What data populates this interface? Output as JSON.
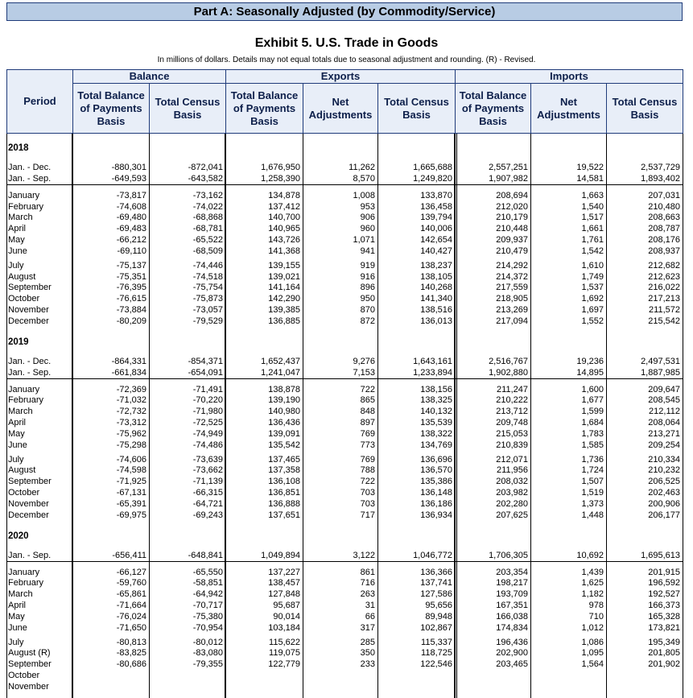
{
  "banner": "Part A: Seasonally Adjusted (by Commodity/Service)",
  "title": "Exhibit 5. U.S. Trade in Goods",
  "note": "In millions of dollars. Details may not equal totals due to seasonal adjustment and rounding. (R) - Revised.",
  "groups": [
    "Balance",
    "Exports",
    "Imports"
  ],
  "columns": [
    "Period",
    "Total Balance of Payments Basis",
    "Total Census Basis",
    "Total Balance of Payments Basis",
    "Net Adjustments",
    "Total Census Basis",
    "Total Balance of Payments Basis",
    "Net Adjustments",
    "Total Census Basis"
  ],
  "sections": [
    {
      "year": "2018",
      "blocks": [
        [
          [
            "Jan. - Dec.",
            "-880,301",
            "-872,041",
            "1,676,950",
            "11,262",
            "1,665,688",
            "2,557,251",
            "19,522",
            "2,537,729"
          ],
          [
            "Jan. - Sep.",
            "-649,593",
            "-643,582",
            "1,258,390",
            "8,570",
            "1,249,820",
            "1,907,982",
            "14,581",
            "1,893,402"
          ]
        ],
        [
          [
            "January",
            "-73,817",
            "-73,162",
            "134,878",
            "1,008",
            "133,870",
            "208,694",
            "1,663",
            "207,031"
          ],
          [
            "February",
            "-74,608",
            "-74,022",
            "137,412",
            "953",
            "136,458",
            "212,020",
            "1,540",
            "210,480"
          ],
          [
            "March",
            "-69,480",
            "-68,868",
            "140,700",
            "906",
            "139,794",
            "210,179",
            "1,517",
            "208,663"
          ],
          [
            "April",
            "-69,483",
            "-68,781",
            "140,965",
            "960",
            "140,006",
            "210,448",
            "1,661",
            "208,787"
          ],
          [
            "May",
            "-66,212",
            "-65,522",
            "143,726",
            "1,071",
            "142,654",
            "209,937",
            "1,761",
            "208,176"
          ],
          [
            "June",
            "-69,110",
            "-68,509",
            "141,368",
            "941",
            "140,427",
            "210,479",
            "1,542",
            "208,937"
          ]
        ],
        [
          [
            "July",
            "-75,137",
            "-74,446",
            "139,155",
            "919",
            "138,237",
            "214,292",
            "1,610",
            "212,682"
          ],
          [
            "August",
            "-75,351",
            "-74,518",
            "139,021",
            "916",
            "138,105",
            "214,372",
            "1,749",
            "212,623"
          ],
          [
            "September",
            "-76,395",
            "-75,754",
            "141,164",
            "896",
            "140,268",
            "217,559",
            "1,537",
            "216,022"
          ],
          [
            "October",
            "-76,615",
            "-75,873",
            "142,290",
            "950",
            "141,340",
            "218,905",
            "1,692",
            "217,213"
          ],
          [
            "November",
            "-73,884",
            "-73,057",
            "139,385",
            "870",
            "138,516",
            "213,269",
            "1,697",
            "211,572"
          ],
          [
            "December",
            "-80,209",
            "-79,529",
            "136,885",
            "872",
            "136,013",
            "217,094",
            "1,552",
            "215,542"
          ]
        ]
      ]
    },
    {
      "year": "2019",
      "blocks": [
        [
          [
            "Jan. - Dec.",
            "-864,331",
            "-854,371",
            "1,652,437",
            "9,276",
            "1,643,161",
            "2,516,767",
            "19,236",
            "2,497,531"
          ],
          [
            "Jan. - Sep.",
            "-661,834",
            "-654,091",
            "1,241,047",
            "7,153",
            "1,233,894",
            "1,902,880",
            "14,895",
            "1,887,985"
          ]
        ],
        [
          [
            "January",
            "-72,369",
            "-71,491",
            "138,878",
            "722",
            "138,156",
            "211,247",
            "1,600",
            "209,647"
          ],
          [
            "February",
            "-71,032",
            "-70,220",
            "139,190",
            "865",
            "138,325",
            "210,222",
            "1,677",
            "208,545"
          ],
          [
            "March",
            "-72,732",
            "-71,980",
            "140,980",
            "848",
            "140,132",
            "213,712",
            "1,599",
            "212,112"
          ],
          [
            "April",
            "-73,312",
            "-72,525",
            "136,436",
            "897",
            "135,539",
            "209,748",
            "1,684",
            "208,064"
          ],
          [
            "May",
            "-75,962",
            "-74,949",
            "139,091",
            "769",
            "138,322",
            "215,053",
            "1,783",
            "213,271"
          ],
          [
            "June",
            "-75,298",
            "-74,486",
            "135,542",
            "773",
            "134,769",
            "210,839",
            "1,585",
            "209,254"
          ]
        ],
        [
          [
            "July",
            "-74,606",
            "-73,639",
            "137,465",
            "769",
            "136,696",
            "212,071",
            "1,736",
            "210,334"
          ],
          [
            "August",
            "-74,598",
            "-73,662",
            "137,358",
            "788",
            "136,570",
            "211,956",
            "1,724",
            "210,232"
          ],
          [
            "September",
            "-71,925",
            "-71,139",
            "136,108",
            "722",
            "135,386",
            "208,032",
            "1,507",
            "206,525"
          ],
          [
            "October",
            "-67,131",
            "-66,315",
            "136,851",
            "703",
            "136,148",
            "203,982",
            "1,519",
            "202,463"
          ],
          [
            "November",
            "-65,391",
            "-64,721",
            "136,888",
            "703",
            "136,186",
            "202,280",
            "1,373",
            "200,906"
          ],
          [
            "December",
            "-69,975",
            "-69,243",
            "137,651",
            "717",
            "136,934",
            "207,625",
            "1,448",
            "206,177"
          ]
        ]
      ]
    },
    {
      "year": "2020",
      "blocks": [
        [
          [
            "Jan. - Sep.",
            "-656,411",
            "-648,841",
            "1,049,894",
            "3,122",
            "1,046,772",
            "1,706,305",
            "10,692",
            "1,695,613"
          ]
        ],
        [
          [
            "January",
            "-66,127",
            "-65,550",
            "137,227",
            "861",
            "136,366",
            "203,354",
            "1,439",
            "201,915"
          ],
          [
            "February",
            "-59,760",
            "-58,851",
            "138,457",
            "716",
            "137,741",
            "198,217",
            "1,625",
            "196,592"
          ],
          [
            "March",
            "-65,861",
            "-64,942",
            "127,848",
            "263",
            "127,586",
            "193,709",
            "1,182",
            "192,527"
          ],
          [
            "April",
            "-71,664",
            "-70,717",
            "95,687",
            "31",
            "95,656",
            "167,351",
            "978",
            "166,373"
          ],
          [
            "May",
            "-76,024",
            "-75,380",
            "90,014",
            "66",
            "89,948",
            "166,038",
            "710",
            "165,328"
          ],
          [
            "June",
            "-71,650",
            "-70,954",
            "103,184",
            "317",
            "102,867",
            "174,834",
            "1,012",
            "173,821"
          ]
        ],
        [
          [
            "July",
            "-80,813",
            "-80,012",
            "115,622",
            "285",
            "115,337",
            "196,436",
            "1,086",
            "195,349"
          ],
          [
            "August (R)",
            "-83,825",
            "-83,080",
            "119,075",
            "350",
            "118,725",
            "202,900",
            "1,095",
            "201,805"
          ],
          [
            "September",
            "-80,686",
            "-79,355",
            "122,779",
            "233",
            "122,546",
            "203,465",
            "1,564",
            "201,902"
          ],
          [
            "October"
          ],
          [
            "November"
          ]
        ]
      ]
    }
  ]
}
